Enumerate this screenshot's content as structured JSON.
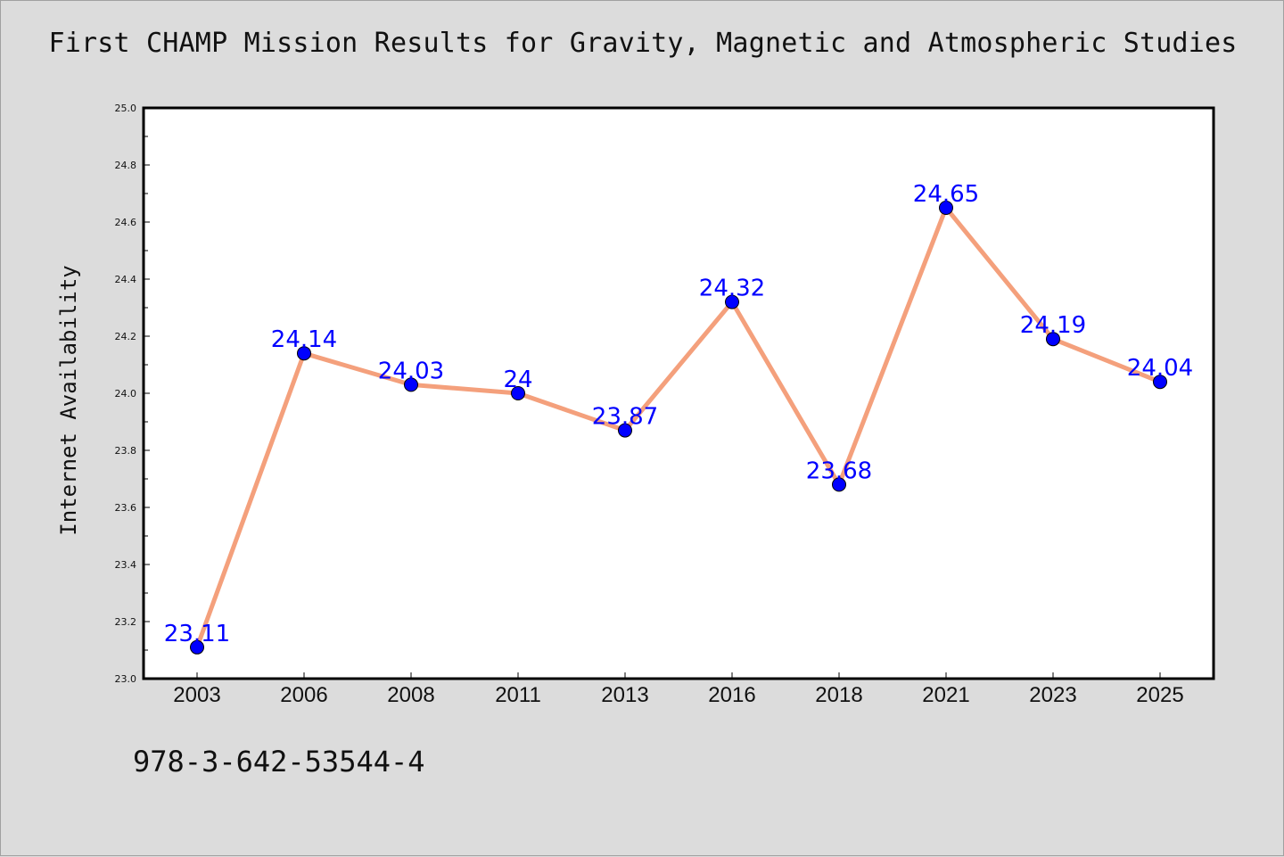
{
  "chart_data": {
    "type": "line",
    "title": "First CHAMP Mission Results for Gravity, Magnetic and Atmospheric Studies",
    "xlabel": "",
    "ylabel": "Internet Availability",
    "categories": [
      "2003",
      "2006",
      "2008",
      "2011",
      "2013",
      "2016",
      "2018",
      "2021",
      "2023",
      "2025"
    ],
    "series": [
      {
        "values": [
          23.11,
          24.14,
          24.03,
          24,
          23.87,
          24.32,
          23.68,
          24.65,
          24.19,
          24.04
        ],
        "line_color": "#f4a07c",
        "marker_color": "#0000ff"
      }
    ],
    "data_labels": [
      "23.11",
      "24.14",
      "24.03",
      "24",
      "23.87",
      "24.32",
      "23.68",
      "24.65",
      "24.19",
      "24.04"
    ],
    "ylim": [
      23.0,
      25.0
    ],
    "yticks": [
      "23.0",
      "23.2",
      "23.4",
      "23.6",
      "23.8",
      "24.0",
      "24.2",
      "24.4",
      "24.6",
      "24.8",
      "25.0"
    ],
    "grid": false,
    "legend": "none"
  },
  "footer": {
    "code": "978-3-642-53544-4"
  },
  "colors": {
    "background": "#dcdcdc",
    "plot_background": "#ffffff",
    "line": "#f4a07c",
    "marker": "#0000ff",
    "data_label": "#0000ff"
  }
}
